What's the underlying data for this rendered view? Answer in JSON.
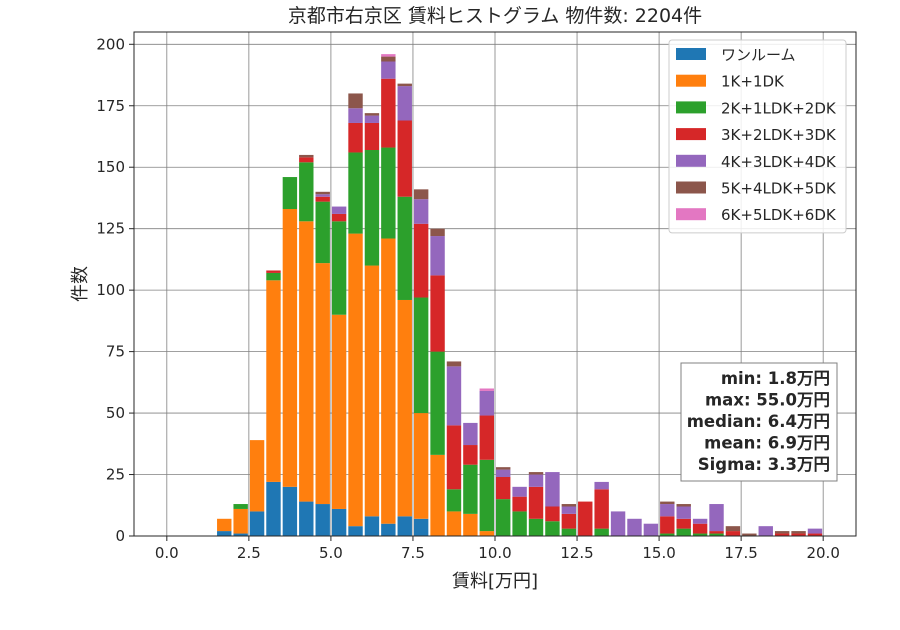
{
  "chart_data": {
    "type": "bar",
    "stacked": true,
    "title": "京都市右京区 賃料ヒストグラム  物件数: 2204件",
    "xlabel": "賃料[万円]",
    "ylabel": "件数",
    "xlim": [
      -1,
      21
    ],
    "ylim": [
      0,
      205
    ],
    "xticks": [
      "0.0",
      "2.5",
      "5.0",
      "7.5",
      "10.0",
      "12.5",
      "15.0",
      "17.5",
      "20.0"
    ],
    "yticks": [
      "0",
      "25",
      "50",
      "75",
      "100",
      "125",
      "150",
      "175",
      "200"
    ],
    "grid": true,
    "legend_position": "top-right",
    "bin_width": 0.5,
    "x": [
      1.5,
      2.0,
      2.5,
      3.0,
      3.5,
      4.0,
      4.5,
      5.0,
      5.5,
      6.0,
      6.5,
      7.0,
      7.5,
      8.0,
      8.5,
      9.0,
      9.5,
      10.0,
      10.5,
      11.0,
      11.5,
      12.0,
      12.5,
      13.0,
      13.5,
      14.0,
      14.5,
      15.0,
      15.5,
      16.0,
      16.5,
      17.0,
      17.5,
      18.0,
      18.5,
      19.0,
      19.5
    ],
    "series": [
      {
        "name": "ワンルーム",
        "color": "#1f77b4",
        "values": [
          2,
          1,
          10,
          22,
          20,
          14,
          13,
          11,
          4,
          8,
          5,
          8,
          7,
          0,
          0,
          0,
          0,
          0,
          0,
          0,
          0,
          0,
          0,
          0,
          0,
          0,
          0,
          0,
          0,
          0,
          0,
          0,
          0,
          0,
          0,
          0,
          0
        ]
      },
      {
        "name": "1K+1DK",
        "color": "#ff7f0e",
        "values": [
          5,
          10,
          29,
          82,
          113,
          114,
          98,
          79,
          119,
          102,
          116,
          88,
          43,
          33,
          10,
          9,
          2,
          0,
          0,
          0,
          0,
          0,
          0,
          0,
          0,
          0,
          0,
          0,
          0,
          0,
          0,
          0,
          0,
          0,
          0,
          0,
          0
        ]
      },
      {
        "name": "2K+1LDK+2DK",
        "color": "#2ca02c",
        "values": [
          0,
          2,
          0,
          3,
          13,
          24,
          25,
          38,
          33,
          47,
          37,
          42,
          47,
          42,
          9,
          20,
          29,
          15,
          10,
          7,
          6,
          3,
          0,
          3,
          0,
          0,
          0,
          1,
          3,
          1,
          1,
          0,
          0,
          0,
          0,
          0,
          0
        ]
      },
      {
        "name": "3K+2LDK+3DK",
        "color": "#d62728",
        "values": [
          0,
          0,
          0,
          1,
          0,
          2,
          2,
          3,
          12,
          11,
          28,
          31,
          30,
          31,
          26,
          8,
          18,
          9,
          6,
          13,
          6,
          6,
          14,
          16,
          0,
          0,
          0,
          7,
          4,
          4,
          1,
          2,
          0,
          0,
          1,
          1,
          1
        ]
      },
      {
        "name": "4K+3LDK+4DK",
        "color": "#9467bd",
        "values": [
          0,
          0,
          0,
          0,
          0,
          0,
          1,
          3,
          6,
          3,
          7,
          14,
          10,
          16,
          24,
          9,
          10,
          3,
          4,
          5,
          14,
          3,
          0,
          3,
          10,
          7,
          5,
          5,
          5,
          2,
          11,
          0,
          0,
          4,
          0,
          0,
          2
        ]
      },
      {
        "name": "5K+4LDK+5DK",
        "color": "#8c564b",
        "values": [
          0,
          0,
          0,
          0,
          0,
          1,
          1,
          0,
          6,
          1,
          2,
          1,
          4,
          3,
          2,
          0,
          0,
          1,
          0,
          1,
          0,
          1,
          0,
          0,
          0,
          0,
          0,
          1,
          1,
          0,
          0,
          2,
          1,
          0,
          1,
          1,
          0
        ]
      },
      {
        "name": "6K+5LDK+6DK",
        "color": "#e377c2",
        "values": [
          0,
          0,
          0,
          0,
          0,
          0,
          0,
          0,
          0,
          0,
          1,
          0,
          0,
          0,
          0,
          0,
          1,
          0,
          0,
          0,
          0,
          0,
          0,
          0,
          0,
          0,
          0,
          0,
          0,
          0,
          0,
          0,
          0,
          0,
          0,
          0,
          0
        ]
      }
    ],
    "stats": [
      {
        "label": "min: 1.8万円"
      },
      {
        "label": "max: 55.0万円"
      },
      {
        "label": "median: 6.4万円"
      },
      {
        "label": "mean: 6.9万円"
      },
      {
        "label": "Sigma: 3.3万円"
      }
    ]
  }
}
